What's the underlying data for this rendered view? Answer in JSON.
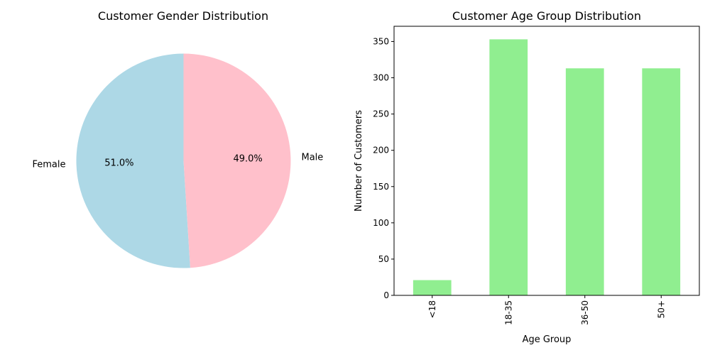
{
  "chart_data": [
    {
      "type": "pie",
      "title": "Customer Gender Distribution",
      "labels": [
        "Female",
        "Male"
      ],
      "values": [
        51.0,
        49.0
      ],
      "percent_labels": [
        "51.0%",
        "49.0%"
      ],
      "colors": [
        "#add8e6",
        "#ffc0cb"
      ],
      "start_angle_deg": 90,
      "direction": "counterclockwise"
    },
    {
      "type": "bar",
      "title": "Customer Age Group Distribution",
      "xlabel": "Age Group",
      "ylabel": "Number of Customers",
      "categories": [
        "<18",
        "18-35",
        "36-50",
        "50+"
      ],
      "values": [
        21,
        353,
        313,
        313
      ],
      "ylim": [
        0,
        371
      ],
      "yticks": [
        0,
        50,
        100,
        150,
        200,
        250,
        300,
        350
      ],
      "bar_color": "#90ee90",
      "grid": false,
      "xtick_rotation": 90
    }
  ]
}
